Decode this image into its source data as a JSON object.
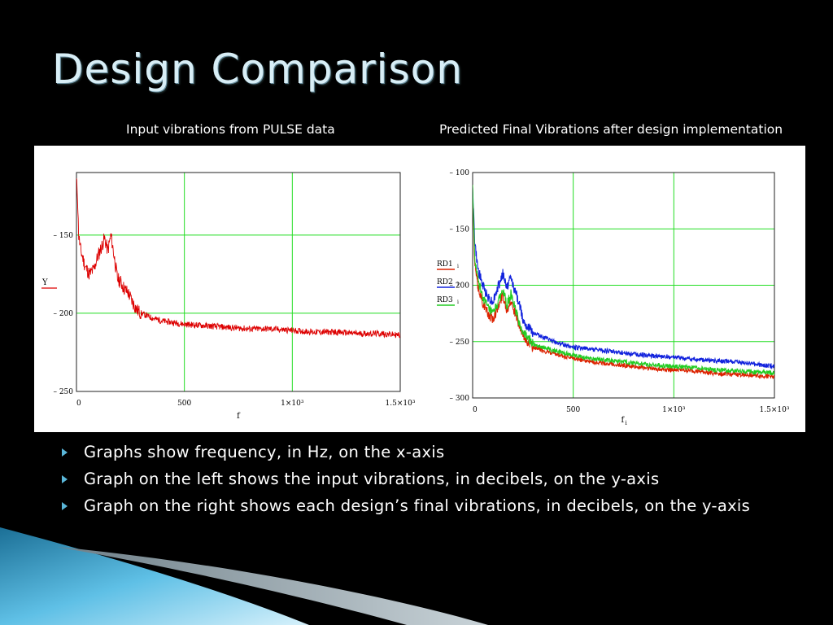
{
  "slide": {
    "title": "Design Comparison"
  },
  "captions": {
    "left": "Input vibrations from PULSE data",
    "right": "Predicted Final Vibrations after design implementation"
  },
  "bullets": [
    "Graphs show frequency, in Hz, on the x-axis",
    "Graph on the left shows the input vibrations, in decibels, on the y-axis",
    "Graph on the right shows each design’s final vibrations, in decibels, on the y-axis"
  ],
  "chart_data": [
    {
      "type": "line",
      "xlabel": "f",
      "ylabel": "Y",
      "xlim": [
        0,
        1500
      ],
      "ylim": [
        -250,
        -110
      ],
      "x_ticks": [
        0,
        500,
        1000,
        1500
      ],
      "x_tick_labels": [
        "0",
        "500",
        "1×10³",
        "1.5×10³"
      ],
      "y_ticks": [
        -150,
        -200,
        -250
      ],
      "y_tick_labels": [
        "– 150",
        "– 200",
        "– 250"
      ],
      "grid": true,
      "grid_color": "#22dd22",
      "series": [
        {
          "name": "Y",
          "color": "#dd0000",
          "x": [
            0,
            5,
            10,
            20,
            40,
            60,
            80,
            100,
            115,
            130,
            145,
            160,
            175,
            190,
            205,
            220,
            240,
            260,
            280,
            300,
            350,
            400,
            500,
            600,
            700,
            800,
            900,
            1000,
            1100,
            1200,
            1300,
            1400,
            1500
          ],
          "y": [
            -115,
            -125,
            -150,
            -160,
            -170,
            -175,
            -172,
            -163,
            -158,
            -152,
            -160,
            -150,
            -164,
            -178,
            -180,
            -184,
            -187,
            -193,
            -198,
            -200,
            -203,
            -205,
            -207,
            -208,
            -209,
            -210,
            -210,
            -211,
            -212,
            -212,
            -213,
            -213,
            -214
          ]
        }
      ]
    },
    {
      "type": "line",
      "xlabel": "f_i",
      "ylabel": "",
      "xlim": [
        0,
        1500
      ],
      "ylim": [
        -300,
        -100
      ],
      "x_ticks": [
        0,
        500,
        1000,
        1500
      ],
      "x_tick_labels": [
        "0",
        "500",
        "1×10³",
        "1.5×10³"
      ],
      "y_ticks": [
        -100,
        -150,
        -200,
        -250,
        -300
      ],
      "y_tick_labels": [
        "– 100",
        "– 150",
        "– 200",
        "– 250",
        "– 300"
      ],
      "grid": true,
      "grid_color": "#22dd22",
      "series": [
        {
          "name": "RD1",
          "color": "#dd2200",
          "x": [
            0,
            10,
            25,
            50,
            75,
            100,
            130,
            150,
            170,
            190,
            210,
            230,
            250,
            275,
            300,
            350,
            400,
            500,
            600,
            700,
            800,
            900,
            1000,
            1100,
            1200,
            1300,
            1400,
            1500
          ],
          "y": [
            -115,
            -180,
            -200,
            -215,
            -225,
            -230,
            -218,
            -208,
            -222,
            -213,
            -224,
            -235,
            -245,
            -250,
            -255,
            -258,
            -261,
            -265,
            -268,
            -270,
            -272,
            -274,
            -275,
            -276,
            -278,
            -279,
            -280,
            -281
          ]
        },
        {
          "name": "RD2",
          "color": "#1122dd",
          "x": [
            0,
            10,
            25,
            50,
            75,
            100,
            130,
            150,
            170,
            190,
            210,
            230,
            250,
            275,
            300,
            350,
            400,
            500,
            600,
            700,
            800,
            900,
            1000,
            1100,
            1200,
            1300,
            1400,
            1500
          ],
          "y": [
            -110,
            -160,
            -185,
            -200,
            -210,
            -215,
            -200,
            -190,
            -202,
            -193,
            -205,
            -215,
            -230,
            -237,
            -242,
            -246,
            -250,
            -255,
            -257,
            -259,
            -261,
            -263,
            -264,
            -266,
            -267,
            -268,
            -270,
            -272
          ]
        },
        {
          "name": "RD3",
          "color": "#22cc22",
          "x": [
            0,
            10,
            25,
            50,
            75,
            100,
            130,
            150,
            170,
            190,
            210,
            230,
            250,
            275,
            300,
            350,
            400,
            500,
            600,
            700,
            800,
            900,
            1000,
            1100,
            1200,
            1300,
            1400,
            1500
          ],
          "y": [
            -112,
            -175,
            -195,
            -210,
            -220,
            -226,
            -214,
            -204,
            -218,
            -208,
            -220,
            -232,
            -242,
            -247,
            -252,
            -255,
            -258,
            -262,
            -265,
            -267,
            -269,
            -271,
            -272,
            -273,
            -275,
            -276,
            -277,
            -278
          ]
        }
      ],
      "legend_position": "left"
    }
  ]
}
